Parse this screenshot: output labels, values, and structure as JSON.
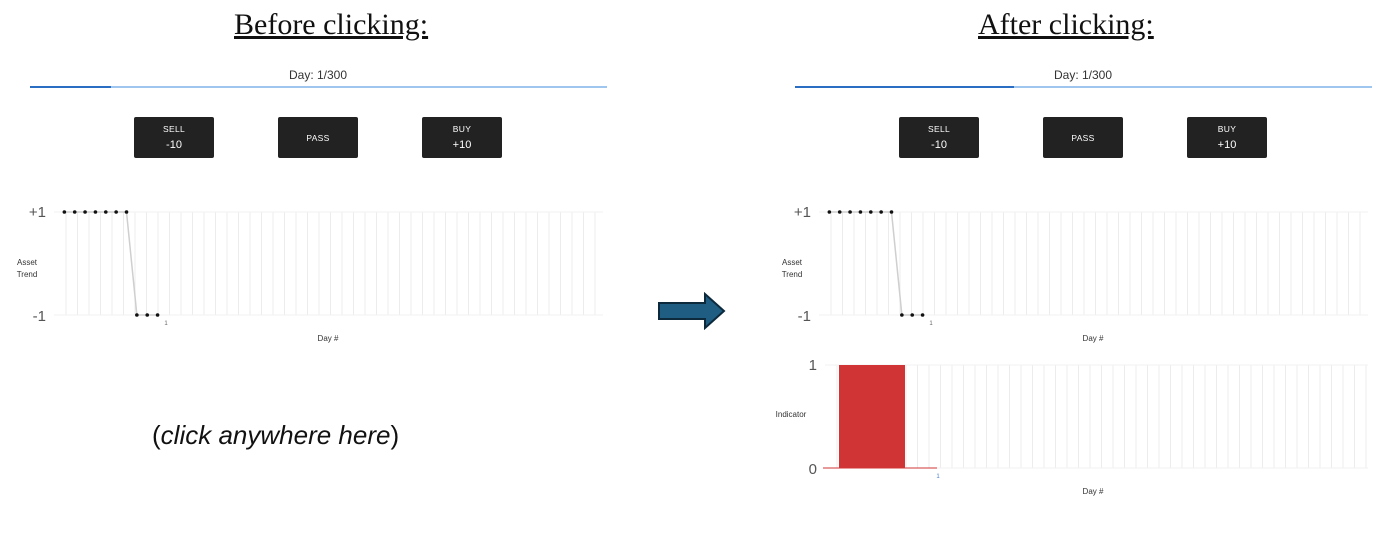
{
  "before": {
    "heading": "Before clicking:",
    "day_label": "Day: 1/300",
    "progress_fraction": 0.14,
    "buttons": {
      "sell": {
        "label": "SELL",
        "value": "-10"
      },
      "pass": {
        "label": "PASS"
      },
      "buy": {
        "label": "BUY",
        "value": "+10"
      }
    },
    "hint": {
      "open": "(",
      "text": "click anywhere here",
      "close": ")"
    }
  },
  "after": {
    "heading": "After clicking:",
    "day_label": "Day: 1/300",
    "progress_fraction": 0.38,
    "buttons": {
      "sell": {
        "label": "SELL",
        "value": "-10"
      },
      "pass": {
        "label": "PASS"
      },
      "buy": {
        "label": "BUY",
        "value": "+10"
      }
    }
  },
  "colors": {
    "accent_blue": "#2a6ec4",
    "track_blue": "#9ec6ee",
    "button_bg": "#222222",
    "indicator_red": "#d03434",
    "arrow_fill": "#1f5d82"
  },
  "chart_data": [
    {
      "id": "asset-trend-before",
      "type": "line",
      "ylabel": "Asset Trend",
      "xlabel": "Day #",
      "ytick_labels": [
        "+1",
        "-1"
      ],
      "xtick_labels": [
        "1"
      ],
      "ylim": [
        -1,
        1
      ],
      "x": [
        -11,
        -10,
        -9,
        -8,
        -7,
        -6,
        -5,
        -4,
        -3,
        -2,
        -1
      ],
      "values": [
        1,
        1,
        1,
        1,
        1,
        1,
        1,
        -1,
        -1,
        -1,
        null
      ],
      "xlim": [
        -12,
        41
      ],
      "grid": true
    },
    {
      "id": "asset-trend-after",
      "type": "line",
      "ylabel": "Asset Trend",
      "xlabel": "Day #",
      "ytick_labels": [
        "+1",
        "-1"
      ],
      "xtick_labels": [
        "1"
      ],
      "ylim": [
        -1,
        1
      ],
      "x": [
        -11,
        -10,
        -9,
        -8,
        -7,
        -6,
        -5,
        -4,
        -3,
        -2,
        -1
      ],
      "values": [
        1,
        1,
        1,
        1,
        1,
        1,
        1,
        -1,
        -1,
        -1,
        null
      ],
      "xlim": [
        -12,
        41
      ],
      "grid": true
    },
    {
      "id": "indicator-after",
      "type": "bar",
      "ylabel": "Indicator",
      "xlabel": "Day #",
      "ytick_labels": [
        "1",
        "0"
      ],
      "xtick_labels": [
        "1"
      ],
      "ylim": [
        0,
        1
      ],
      "categories": [
        "1"
      ],
      "values": [
        1
      ],
      "xlim": [
        -12,
        41
      ],
      "grid": true
    }
  ]
}
